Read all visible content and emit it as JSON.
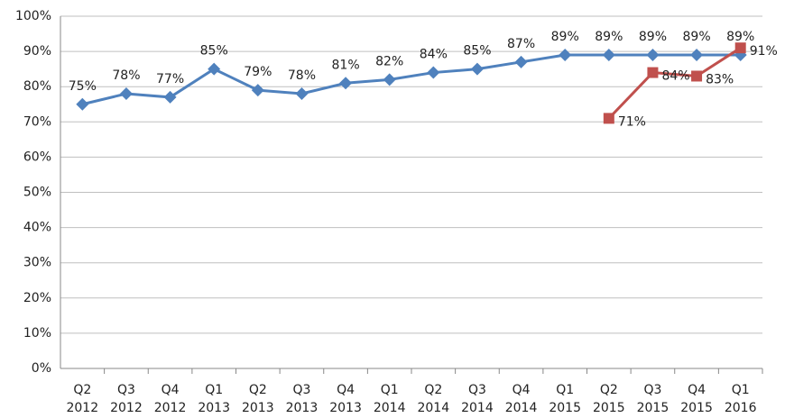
{
  "chart_data": {
    "type": "line",
    "categories": [
      [
        "Q2",
        "2012"
      ],
      [
        "Q3",
        "2012"
      ],
      [
        "Q4",
        "2012"
      ],
      [
        "Q1",
        "2013"
      ],
      [
        "Q2",
        "2013"
      ],
      [
        "Q3",
        "2013"
      ],
      [
        "Q4",
        "2013"
      ],
      [
        "Q1",
        "2014"
      ],
      [
        "Q2",
        "2014"
      ],
      [
        "Q3",
        "2014"
      ],
      [
        "Q4",
        "2014"
      ],
      [
        "Q1",
        "2015"
      ],
      [
        "Q2",
        "2015"
      ],
      [
        "Q3",
        "2015"
      ],
      [
        "Q4",
        "2015"
      ],
      [
        "Q1",
        "2016"
      ]
    ],
    "series": [
      {
        "color": "#4f81bd",
        "marker": "diamond",
        "values": [
          75,
          78,
          77,
          85,
          79,
          78,
          81,
          82,
          84,
          85,
          87,
          89,
          89,
          89,
          89,
          89
        ],
        "value_labels": [
          "75%",
          "78%",
          "77%",
          "85%",
          "79%",
          "78%",
          "81%",
          "82%",
          "84%",
          "85%",
          "87%",
          "89%",
          "89%",
          "89%",
          "89%",
          "89%"
        ]
      },
      {
        "color": "#c0504d",
        "marker": "square",
        "values": [
          null,
          null,
          null,
          null,
          null,
          null,
          null,
          null,
          null,
          null,
          null,
          null,
          71,
          84,
          83,
          91
        ],
        "value_labels": [
          null,
          null,
          null,
          null,
          null,
          null,
          null,
          null,
          null,
          null,
          null,
          null,
          "71%",
          "84%",
          "83%",
          "91%"
        ]
      }
    ],
    "ylim": [
      0,
      100
    ],
    "yticks": [
      {
        "value": 0,
        "label": "0%"
      },
      {
        "value": 10,
        "label": "10%"
      },
      {
        "value": 20,
        "label": "20%"
      },
      {
        "value": 30,
        "label": "30%"
      },
      {
        "value": 40,
        "label": "40%"
      },
      {
        "value": 50,
        "label": "50%"
      },
      {
        "value": 60,
        "label": "60%"
      },
      {
        "value": 70,
        "label": "70%"
      },
      {
        "value": 80,
        "label": "80%"
      },
      {
        "value": 90,
        "label": "90%"
      },
      {
        "value": 100,
        "label": "100%"
      }
    ],
    "grid": true
  }
}
